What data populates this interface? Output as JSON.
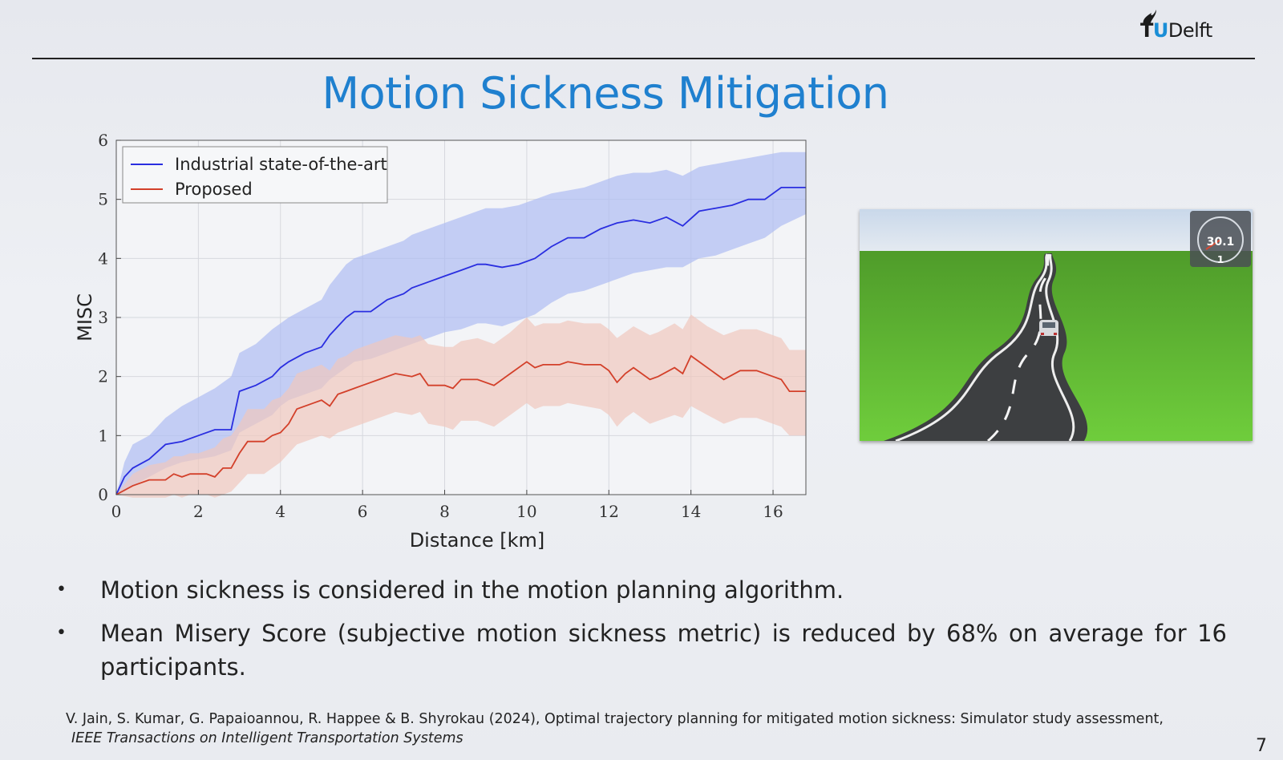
{
  "header": {
    "logo_letters": {
      "t": "T",
      "u": "U",
      "rest": "Delft"
    },
    "title": "Motion Sickness Mitigation"
  },
  "chart_data": {
    "type": "line",
    "xlabel": "Distance [km]",
    "ylabel": "MISC",
    "xlim": [
      0,
      16.8
    ],
    "ylim": [
      0,
      6
    ],
    "xticks": [
      0,
      2,
      4,
      6,
      8,
      10,
      12,
      14,
      16
    ],
    "yticks": [
      0,
      1,
      2,
      3,
      4,
      5,
      6
    ],
    "grid": true,
    "legend_position": "top-left",
    "series": [
      {
        "name": "Industrial state-of-the-art",
        "color": "#2a2ee0",
        "band_color": "#aebcf2",
        "x": [
          0,
          0.2,
          0.4,
          0.8,
          1.2,
          1.6,
          2.0,
          2.4,
          2.6,
          2.8,
          3.0,
          3.4,
          3.8,
          4.0,
          4.2,
          4.6,
          5.0,
          5.2,
          5.6,
          5.8,
          6.2,
          6.6,
          7.0,
          7.2,
          7.6,
          8.0,
          8.4,
          8.8,
          9.0,
          9.4,
          9.8,
          10.2,
          10.6,
          11.0,
          11.4,
          11.8,
          12.2,
          12.6,
          13.0,
          13.4,
          13.8,
          14.2,
          14.6,
          15.0,
          15.4,
          15.8,
          16.2,
          16.8
        ],
        "y": [
          0.0,
          0.3,
          0.45,
          0.6,
          0.85,
          0.9,
          1.0,
          1.1,
          1.1,
          1.1,
          1.75,
          1.85,
          2.0,
          2.15,
          2.25,
          2.4,
          2.5,
          2.7,
          3.0,
          3.1,
          3.1,
          3.3,
          3.4,
          3.5,
          3.6,
          3.7,
          3.8,
          3.9,
          3.9,
          3.85,
          3.9,
          4.0,
          4.2,
          4.35,
          4.35,
          4.5,
          4.6,
          4.65,
          4.6,
          4.7,
          4.55,
          4.8,
          4.85,
          4.9,
          5.0,
          5.0,
          5.2,
          5.2
        ],
        "lower": [
          0.0,
          0.05,
          0.15,
          0.3,
          0.45,
          0.55,
          0.6,
          0.65,
          0.7,
          0.75,
          1.05,
          1.2,
          1.35,
          1.5,
          1.6,
          1.7,
          1.8,
          1.95,
          2.15,
          2.25,
          2.3,
          2.4,
          2.5,
          2.55,
          2.65,
          2.75,
          2.8,
          2.9,
          2.9,
          2.85,
          2.95,
          3.05,
          3.25,
          3.4,
          3.45,
          3.55,
          3.65,
          3.75,
          3.8,
          3.85,
          3.85,
          4.0,
          4.05,
          4.15,
          4.25,
          4.35,
          4.55,
          4.75
        ],
        "upper": [
          0.0,
          0.55,
          0.85,
          1.0,
          1.3,
          1.5,
          1.65,
          1.8,
          1.9,
          2.0,
          2.4,
          2.55,
          2.8,
          2.9,
          3.0,
          3.15,
          3.3,
          3.55,
          3.9,
          4.0,
          4.1,
          4.2,
          4.3,
          4.4,
          4.5,
          4.6,
          4.7,
          4.8,
          4.85,
          4.85,
          4.9,
          5.0,
          5.1,
          5.15,
          5.2,
          5.3,
          5.4,
          5.45,
          5.45,
          5.5,
          5.4,
          5.55,
          5.6,
          5.65,
          5.7,
          5.75,
          5.8,
          5.8
        ]
      },
      {
        "name": "Proposed",
        "color": "#d3402a",
        "band_color": "#f0c8bd",
        "x": [
          0,
          0.4,
          0.8,
          1.2,
          1.4,
          1.6,
          1.8,
          2.0,
          2.2,
          2.4,
          2.6,
          2.8,
          3.0,
          3.2,
          3.6,
          3.8,
          4.0,
          4.2,
          4.4,
          4.8,
          5.0,
          5.2,
          5.4,
          5.6,
          5.8,
          6.0,
          6.4,
          6.8,
          7.2,
          7.4,
          7.6,
          8.0,
          8.2,
          8.4,
          8.8,
          9.2,
          9.6,
          10.0,
          10.2,
          10.4,
          10.8,
          11.0,
          11.4,
          11.8,
          12.0,
          12.2,
          12.4,
          12.6,
          13.0,
          13.2,
          13.6,
          13.8,
          14.0,
          14.4,
          14.8,
          15.2,
          15.6,
          16.0,
          16.2,
          16.4,
          16.8
        ],
        "y": [
          0.0,
          0.15,
          0.25,
          0.25,
          0.35,
          0.3,
          0.35,
          0.35,
          0.35,
          0.3,
          0.45,
          0.45,
          0.7,
          0.9,
          0.9,
          1.0,
          1.05,
          1.2,
          1.45,
          1.55,
          1.6,
          1.5,
          1.7,
          1.75,
          1.8,
          1.85,
          1.95,
          2.05,
          2.0,
          2.05,
          1.85,
          1.85,
          1.8,
          1.95,
          1.95,
          1.85,
          2.05,
          2.25,
          2.15,
          2.2,
          2.2,
          2.25,
          2.2,
          2.2,
          2.1,
          1.9,
          2.05,
          2.15,
          1.95,
          2.0,
          2.15,
          2.05,
          2.35,
          2.15,
          1.95,
          2.1,
          2.1,
          2.0,
          1.95,
          1.75,
          1.75
        ],
        "lower": [
          0.0,
          -0.05,
          -0.05,
          -0.05,
          0.0,
          -0.05,
          0.0,
          0.0,
          0.0,
          -0.05,
          0.0,
          0.05,
          0.2,
          0.35,
          0.35,
          0.45,
          0.55,
          0.7,
          0.85,
          0.95,
          1.0,
          0.95,
          1.05,
          1.1,
          1.15,
          1.2,
          1.3,
          1.4,
          1.35,
          1.4,
          1.2,
          1.15,
          1.1,
          1.25,
          1.25,
          1.15,
          1.35,
          1.55,
          1.45,
          1.5,
          1.5,
          1.55,
          1.5,
          1.45,
          1.35,
          1.15,
          1.3,
          1.4,
          1.2,
          1.25,
          1.35,
          1.3,
          1.5,
          1.35,
          1.2,
          1.3,
          1.3,
          1.2,
          1.15,
          1.0,
          1.0
        ],
        "upper": [
          0.0,
          0.35,
          0.5,
          0.55,
          0.65,
          0.65,
          0.7,
          0.7,
          0.75,
          0.8,
          0.95,
          1.0,
          1.2,
          1.45,
          1.45,
          1.6,
          1.65,
          1.8,
          2.05,
          2.15,
          2.2,
          2.1,
          2.3,
          2.35,
          2.45,
          2.5,
          2.6,
          2.7,
          2.65,
          2.7,
          2.55,
          2.5,
          2.5,
          2.6,
          2.65,
          2.55,
          2.75,
          3.0,
          2.85,
          2.9,
          2.9,
          2.95,
          2.9,
          2.9,
          2.8,
          2.65,
          2.75,
          2.85,
          2.7,
          2.75,
          2.9,
          2.8,
          3.05,
          2.85,
          2.7,
          2.8,
          2.8,
          2.7,
          2.65,
          2.45,
          2.45
        ]
      }
    ]
  },
  "simulator": {
    "speed_value": "30.1",
    "gear_value": "1"
  },
  "bullets": [
    "Motion sickness is considered in the motion planning algorithm.",
    "Mean Misery Score (subjective motion sickness metric) is reduced by 68% on average for 16 participants."
  ],
  "bullet_symbol": "•",
  "reference": {
    "line1": "V. Jain, S. Kumar, G. Papaioannou, R. Happee & B. Shyrokau (2024), Optimal trajectory planning for mitigated motion sickness: Simulator study assessment,",
    "line2": "IEEE Transactions on Intelligent Transportation Systems"
  },
  "page_number": "7"
}
